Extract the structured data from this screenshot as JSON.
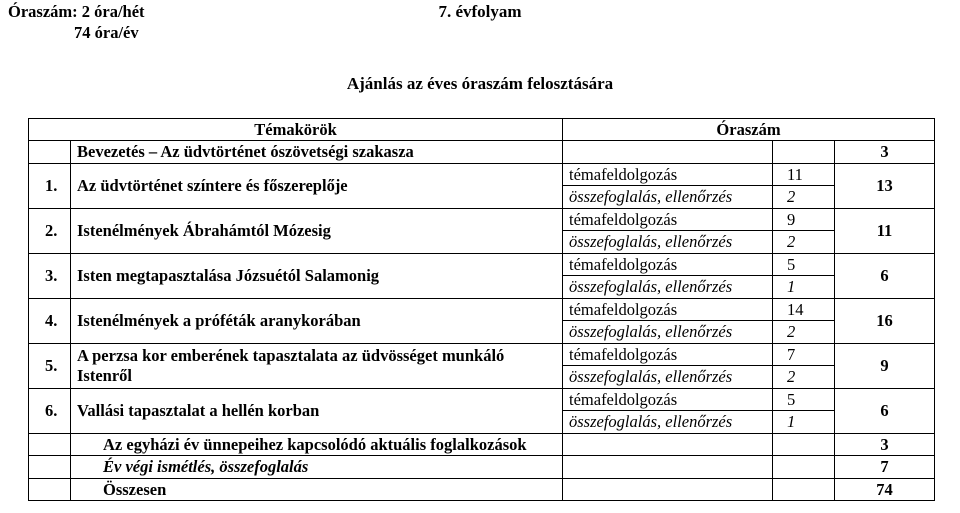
{
  "header": {
    "hours_line1": "Óraszám: 2 óra/hét",
    "hours_line2": "74 óra/év",
    "grade": "7. évfolyam",
    "subtitle": "Ajánlás az éves óraszám felosztására"
  },
  "table": {
    "head": {
      "topics": "Témakörök",
      "hours": "Óraszám"
    },
    "intro": {
      "name": "Bevezetés – Az üdvtörténet ószövetségi szakasza",
      "total": "3"
    },
    "rows": [
      {
        "num": "1.",
        "name": "Az üdvtörténet színtere és főszereplője",
        "d1": "témafeldolgozás",
        "v1": "11",
        "d2": "összefoglalás, ellenőrzés",
        "v2": "2",
        "total": "13"
      },
      {
        "num": "2.",
        "name": "Istenélmények Ábrahámtól Mózesig",
        "d1": "témafeldolgozás",
        "v1": "9",
        "d2": "összefoglalás, ellenőrzés",
        "v2": "2",
        "total": "11"
      },
      {
        "num": "3.",
        "name": "Isten megtapasztalása Józsuétól Salamonig",
        "d1": "témafeldolgozás",
        "v1": "5",
        "d2": "összefoglalás, ellenőrzés",
        "v2": "1",
        "total": "6"
      },
      {
        "num": "4.",
        "name": "Istenélmények a próféták aranykorában",
        "d1": "témafeldolgozás",
        "v1": "14",
        "d2": "összefoglalás, ellenőrzés",
        "v2": "2",
        "total": "16"
      },
      {
        "num": "5.",
        "name": "A perzsa kor emberének tapasztalata az üdvösséget munkáló Istenről",
        "d1": "témafeldolgozás",
        "v1": "7",
        "d2": "összefoglalás, ellenőrzés",
        "v2": "2",
        "total": "9"
      },
      {
        "num": "6.",
        "name": "Vallási tapasztalat a hellén korban",
        "d1": "témafeldolgozás",
        "v1": "5",
        "d2": "összefoglalás, ellenőrzés",
        "v2": "1",
        "total": "6"
      }
    ],
    "extras": [
      {
        "name": "Az egyházi év ünnepeihez kapcsolódó aktuális foglalkozások",
        "total": "3",
        "italic": false
      },
      {
        "name": "Év végi ismétlés, összefoglalás",
        "total": "7",
        "italic": true
      }
    ],
    "sum": {
      "name": "Összesen",
      "total": "74"
    }
  }
}
